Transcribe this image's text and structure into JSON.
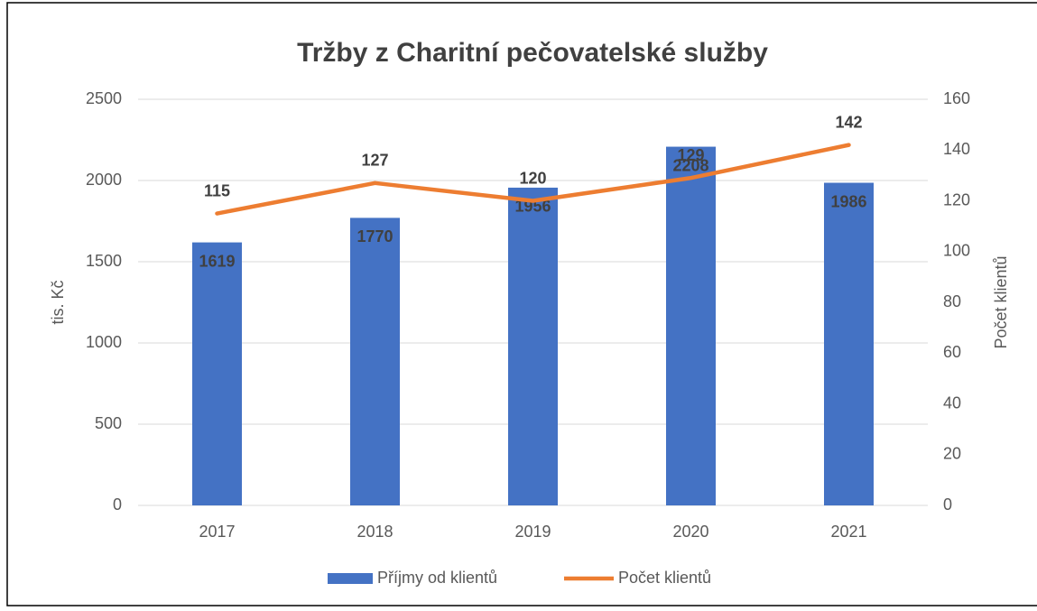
{
  "chart_data": {
    "type": "combo",
    "title": "Tržby z Charitní pečovatelské služby",
    "categories": [
      "2017",
      "2018",
      "2019",
      "2020",
      "2021"
    ],
    "series": [
      {
        "name": "Příjmy od klientů",
        "type": "bar",
        "color": "#4472c4",
        "values": [
          1619,
          1770,
          1956,
          2208,
          1986
        ]
      },
      {
        "name": "Počet klientů",
        "type": "line",
        "axis": "y2",
        "color": "#ed7d31",
        "values": [
          115,
          127,
          120,
          129,
          142
        ]
      }
    ],
    "ylabel": "tis. Kč",
    "y2label": "Počet klientů",
    "ylim": [
      0,
      2500
    ],
    "yticks": [
      0,
      500,
      1000,
      1500,
      2000,
      2500
    ],
    "y2lim": [
      0,
      160
    ],
    "y2ticks": [
      0,
      20,
      40,
      60,
      80,
      100,
      120,
      140,
      160
    ],
    "grid": true,
    "legend": "bottom"
  }
}
